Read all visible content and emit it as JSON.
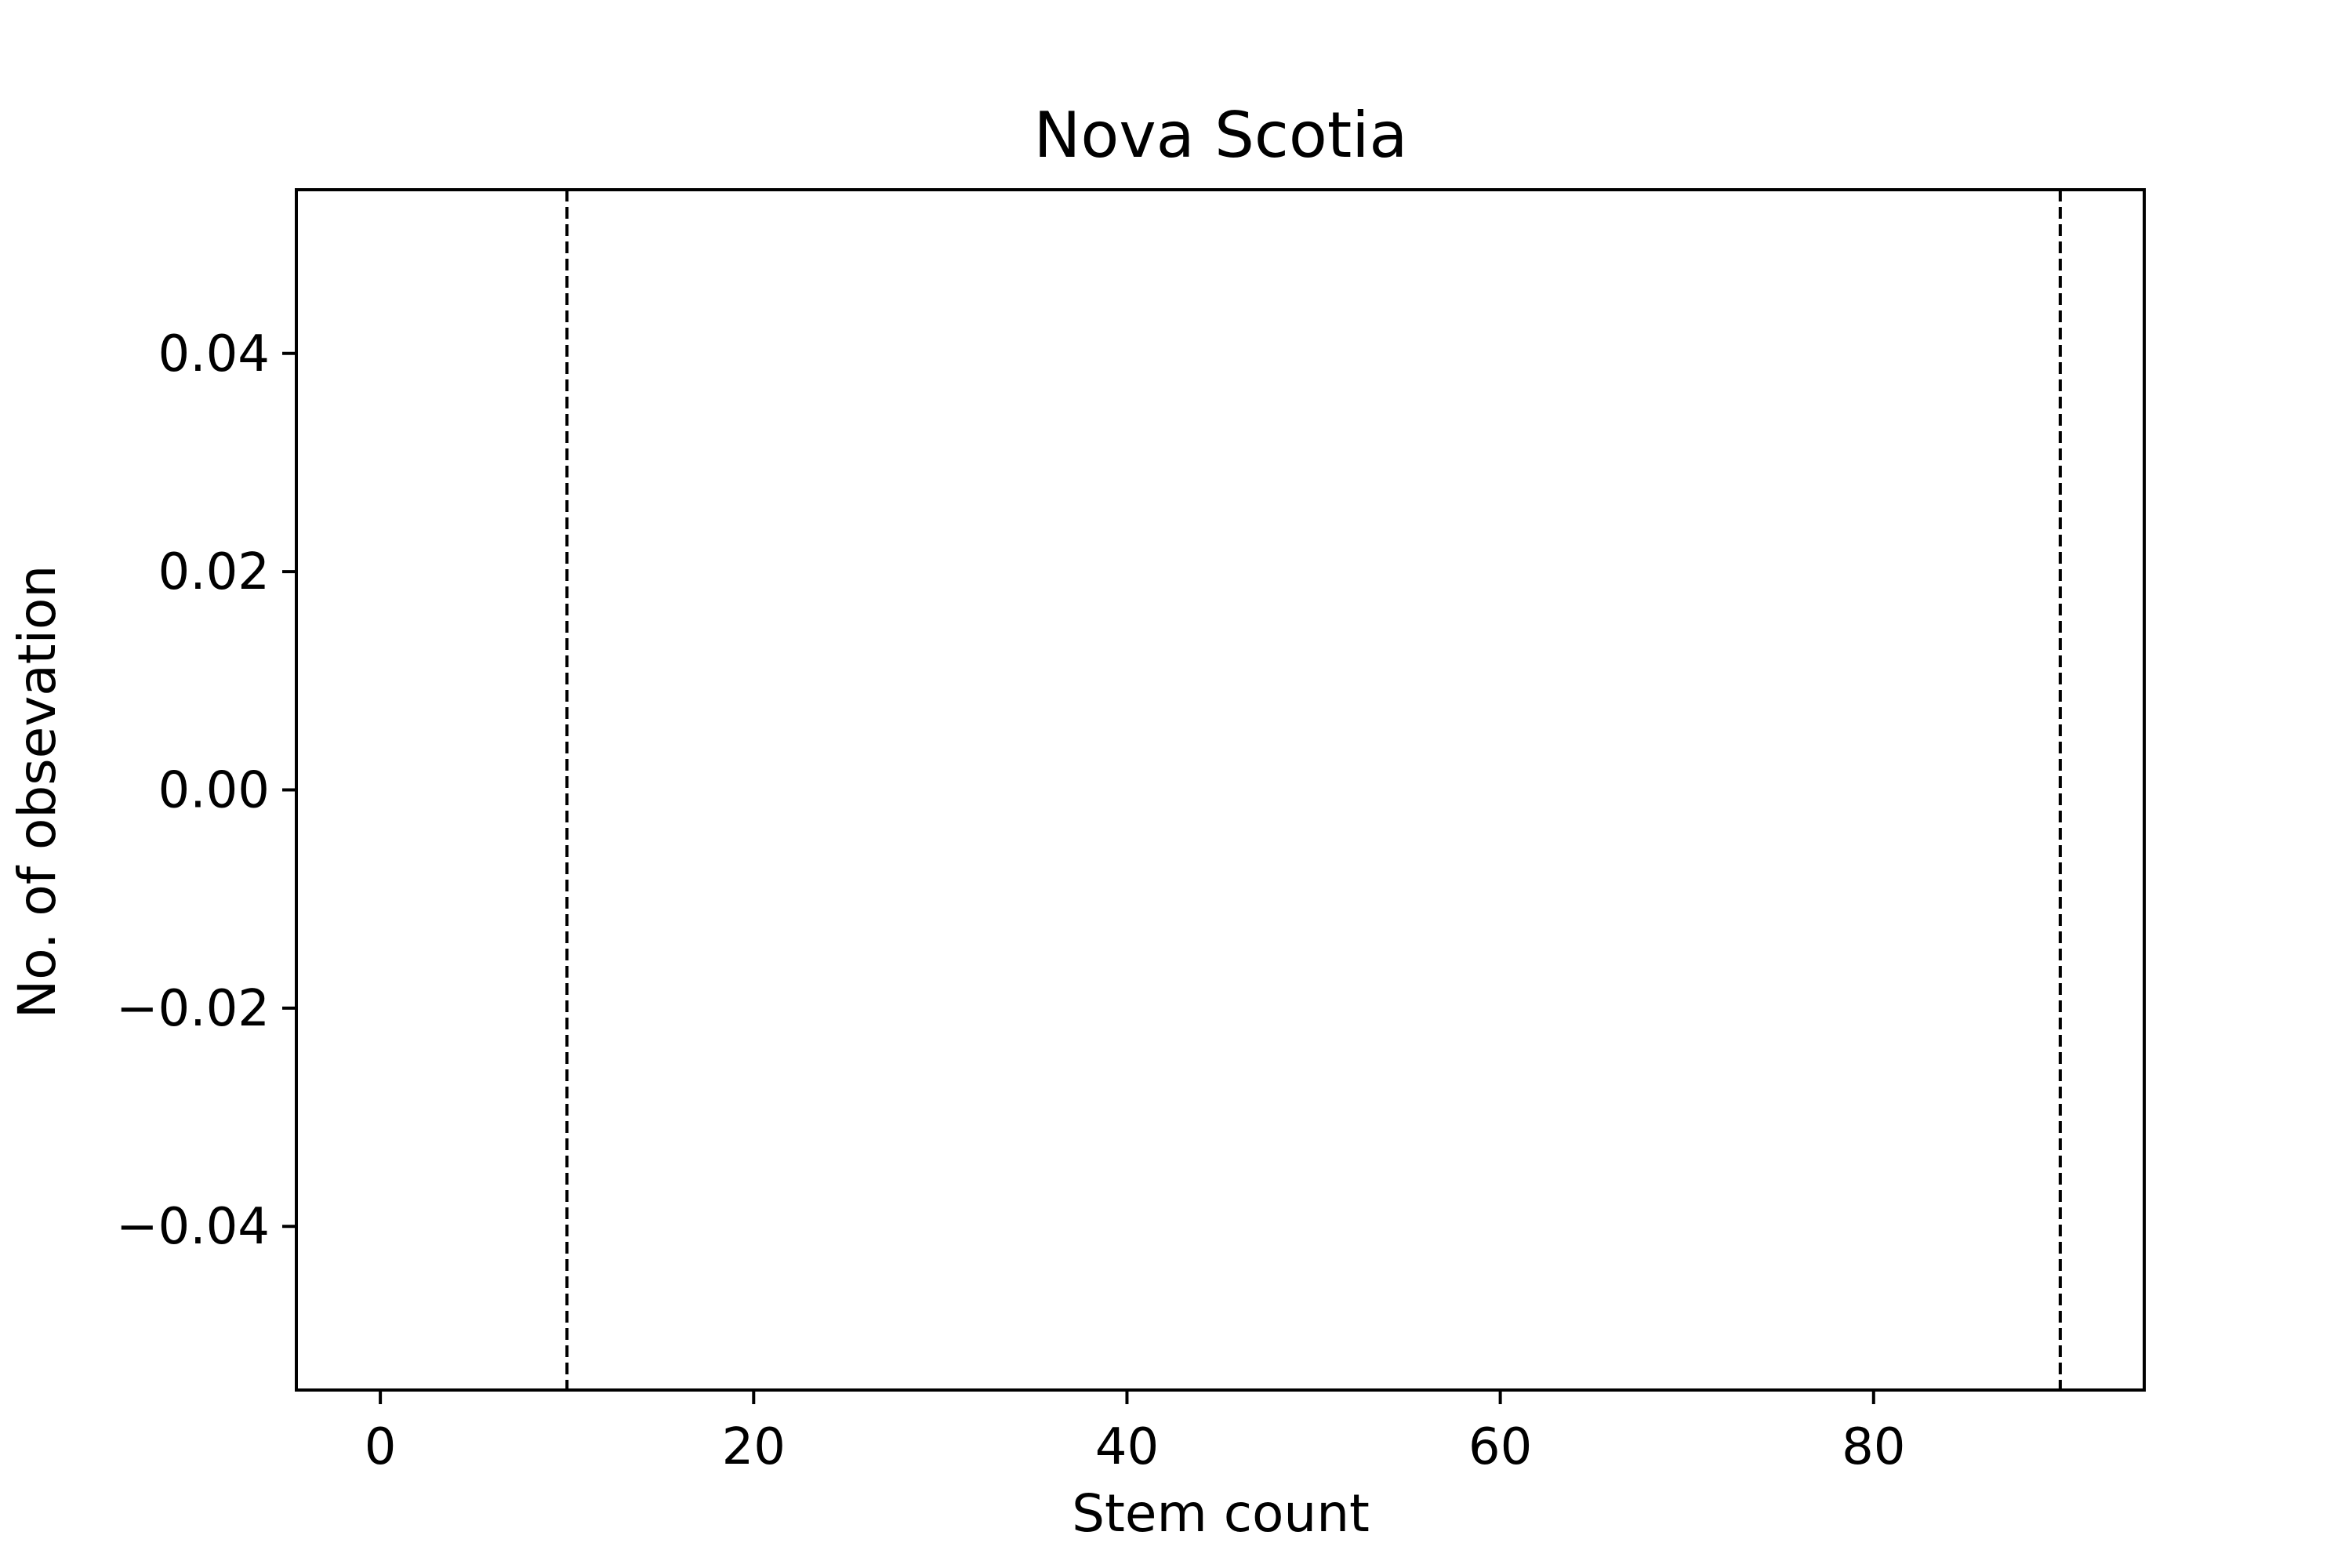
{
  "chart_data": {
    "type": "line",
    "title": "Nova Scotia",
    "xlabel": "Stem count",
    "ylabel": "No. of obsevation",
    "xlim": [
      -4.5,
      94.5
    ],
    "ylim": [
      -0.055,
      0.055
    ],
    "x_ticks": [
      {
        "value": 0,
        "label": "0"
      },
      {
        "value": 20,
        "label": "20"
      },
      {
        "value": 40,
        "label": "40"
      },
      {
        "value": 60,
        "label": "60"
      },
      {
        "value": 80,
        "label": "80"
      }
    ],
    "y_ticks": [
      {
        "value": -0.04,
        "label": "−0.04"
      },
      {
        "value": -0.02,
        "label": "−0.02"
      },
      {
        "value": 0.0,
        "label": "0.00"
      },
      {
        "value": 0.02,
        "label": "0.02"
      },
      {
        "value": 0.04,
        "label": "0.04"
      }
    ],
    "vertical_lines": [
      {
        "x": 10,
        "style": "dashed",
        "color": "#000000"
      },
      {
        "x": 90,
        "style": "dashed",
        "color": "#000000"
      }
    ],
    "series": [],
    "grid": false
  }
}
